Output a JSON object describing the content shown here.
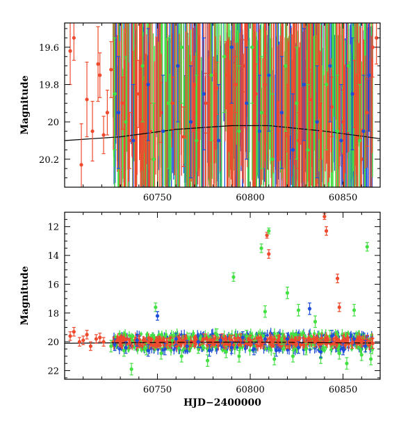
{
  "chart_data": [
    {
      "id": "top",
      "type": "scatter",
      "title": "",
      "xlabel": "",
      "ylabel": "Magnitude",
      "xlim": [
        60700,
        60870
      ],
      "ylim": [
        20.35,
        19.47
      ],
      "y_inverted": true,
      "xticks": [
        60750,
        60800,
        60850
      ],
      "yticks": [
        19.6,
        19.8,
        20,
        20.2
      ],
      "ytick_labels": [
        "19.6",
        "19.8",
        "20",
        "20.2"
      ],
      "grid": false,
      "colors": {
        "blue": "#1f4fd8",
        "green": "#44e044",
        "red": "#f04a2e",
        "model": "#000000"
      },
      "model_curve": [
        [
          60700,
          20.1
        ],
        [
          60730,
          20.08
        ],
        [
          60760,
          20.04
        ],
        [
          60790,
          20.02
        ],
        [
          60810,
          20.02
        ],
        [
          60840,
          20.05
        ],
        [
          60870,
          20.09
        ]
      ],
      "series": [
        {
          "color": "red",
          "points": [
            [
              60703,
              19.62,
              0.18
            ],
            [
              60705,
              19.55,
              0.12
            ],
            [
              60709,
              20.23,
              0.22
            ],
            [
              60712,
              19.88,
              0.2
            ],
            [
              60715,
              20.05,
              0.16
            ],
            [
              60718,
              19.69,
              0.2
            ],
            [
              60719,
              19.75,
              0.12
            ],
            [
              60721,
              20.07,
              0.1
            ],
            [
              60723,
              19.95,
              0.12
            ],
            [
              60725,
              19.72,
              0.15
            ],
            [
              60731,
              19.9,
              0.14
            ],
            [
              60735,
              20.1,
              0.15
            ],
            [
              60740,
              19.85,
              0.18
            ],
            [
              60746,
              20.05,
              0.15
            ],
            [
              60752,
              19.95,
              0.16
            ],
            [
              60758,
              19.9,
              0.14
            ],
            [
              60764,
              20.08,
              0.16
            ],
            [
              60770,
              19.8,
              0.15
            ],
            [
              60776,
              19.9,
              0.16
            ],
            [
              60782,
              19.82,
              0.14
            ],
            [
              60787,
              19.75,
              0.18
            ],
            [
              60792,
              19.8,
              0.15
            ],
            [
              60797,
              19.7,
              0.14
            ],
            [
              60803,
              19.85,
              0.16
            ],
            [
              60808,
              19.8,
              0.17
            ],
            [
              60815,
              20.05,
              0.16
            ],
            [
              60820,
              19.98,
              0.18
            ],
            [
              60826,
              20.1,
              0.15
            ],
            [
              60832,
              19.88,
              0.16
            ],
            [
              60838,
              20.05,
              0.15
            ],
            [
              60844,
              19.92,
              0.16
            ],
            [
              60850,
              20.0,
              0.17
            ],
            [
              60856,
              19.85,
              0.18
            ],
            [
              60860,
              20.2,
              0.16
            ],
            [
              60863,
              19.95,
              0.18
            ],
            [
              60866,
              19.6,
              0.16
            ],
            [
              60868,
              19.55,
              0.14
            ]
          ]
        },
        {
          "color": "green",
          "points": [
            [
              60727,
              19.85,
              0.3
            ],
            [
              60733,
              20.0,
              0.35
            ],
            [
              60742,
              19.7,
              0.3
            ],
            [
              60748,
              20.2,
              0.3
            ],
            [
              60756,
              19.9,
              0.35
            ],
            [
              60763,
              19.6,
              0.3
            ],
            [
              60771,
              20.1,
              0.35
            ],
            [
              60779,
              19.75,
              0.35
            ],
            [
              60786,
              19.65,
              0.3
            ],
            [
              60794,
              20.05,
              0.35
            ],
            [
              60801,
              19.6,
              0.3
            ],
            [
              60806,
              19.95,
              0.3
            ],
            [
              60812,
              20.2,
              0.35
            ],
            [
              60819,
              19.7,
              0.35
            ],
            [
              60825,
              19.9,
              0.3
            ],
            [
              60831,
              20.15,
              0.35
            ],
            [
              60841,
              19.8,
              0.35
            ],
            [
              60847,
              20.05,
              0.3
            ],
            [
              60853,
              19.7,
              0.35
            ],
            [
              60859,
              20.1,
              0.3
            ]
          ]
        },
        {
          "color": "blue",
          "points": [
            [
              60729,
              19.95,
              0.3
            ],
            [
              60737,
              20.1,
              0.3
            ],
            [
              60745,
              19.8,
              0.3
            ],
            [
              60753,
              20.05,
              0.3
            ],
            [
              60761,
              19.7,
              0.3
            ],
            [
              60768,
              20.0,
              0.3
            ],
            [
              60775,
              19.85,
              0.3
            ],
            [
              60783,
              20.1,
              0.3
            ],
            [
              60790,
              19.6,
              0.3
            ],
            [
              60798,
              19.9,
              0.3
            ],
            [
              60805,
              20.05,
              0.3
            ],
            [
              60810,
              19.75,
              0.3
            ],
            [
              60817,
              19.95,
              0.3
            ],
            [
              60823,
              20.15,
              0.3
            ],
            [
              60829,
              19.8,
              0.3
            ],
            [
              60836,
              20.0,
              0.3
            ],
            [
              60843,
              19.7,
              0.3
            ],
            [
              60849,
              20.1,
              0.3
            ],
            [
              60855,
              19.85,
              0.3
            ],
            [
              60861,
              20.05,
              0.3
            ],
            [
              60864,
              19.75,
              0.3
            ]
          ]
        }
      ]
    },
    {
      "id": "bottom",
      "type": "scatter",
      "title": "",
      "xlabel": "HJD−2400000",
      "ylabel": "Magnitude",
      "xlim": [
        60700,
        60870
      ],
      "ylim": [
        22.6,
        11.0
      ],
      "y_inverted": true,
      "xticks": [
        60750,
        60800,
        60850
      ],
      "yticks": [
        12,
        14,
        16,
        18,
        20,
        22
      ],
      "ytick_labels": [
        "12",
        "14",
        "16",
        "18",
        "20",
        "22"
      ],
      "grid": false,
      "model_curve": [
        [
          60700,
          20.1
        ],
        [
          60760,
          20.04
        ],
        [
          60800,
          20.02
        ],
        [
          60870,
          20.09
        ]
      ],
      "series": [
        {
          "color": "red",
          "points": [
            [
              60703,
              19.6,
              0.3
            ],
            [
              60705,
              19.3,
              0.3
            ],
            [
              60708,
              20.0,
              0.3
            ],
            [
              60710,
              19.9,
              0.3
            ],
            [
              60712,
              19.5,
              0.3
            ],
            [
              60714,
              20.3,
              0.3
            ],
            [
              60717,
              19.8,
              0.3
            ],
            [
              60719,
              19.7,
              0.3
            ],
            [
              60721,
              20.0,
              0.3
            ],
            [
              60730,
              20.0,
              0.35
            ],
            [
              60735,
              20.1,
              0.35
            ],
            [
              60740,
              19.9,
              0.35
            ],
            [
              60745,
              20.1,
              0.35
            ],
            [
              60750,
              20.0,
              0.35
            ],
            [
              60755,
              20.1,
              0.35
            ],
            [
              60760,
              20.0,
              0.35
            ],
            [
              60765,
              19.9,
              0.35
            ],
            [
              60770,
              20.0,
              0.35
            ],
            [
              60775,
              19.8,
              0.35
            ],
            [
              60780,
              19.9,
              0.35
            ],
            [
              60785,
              19.8,
              0.35
            ],
            [
              60790,
              19.9,
              0.35
            ],
            [
              60795,
              19.8,
              0.35
            ],
            [
              60800,
              19.9,
              0.35
            ],
            [
              60805,
              20.0,
              0.35
            ],
            [
              60809,
              12.6,
              0.2
            ],
            [
              60810,
              13.9,
              0.3
            ],
            [
              60812,
              20.0,
              0.35
            ],
            [
              60815,
              19.9,
              0.35
            ],
            [
              60820,
              20.1,
              0.35
            ],
            [
              60825,
              20.0,
              0.35
            ],
            [
              60830,
              20.1,
              0.35
            ],
            [
              60835,
              20.0,
              0.35
            ],
            [
              60840,
              11.3,
              0.2
            ],
            [
              60841,
              12.3,
              0.3
            ],
            [
              60845,
              20.1,
              0.35
            ],
            [
              60847,
              15.6,
              0.3
            ],
            [
              60848,
              17.6,
              0.3
            ],
            [
              60850,
              19.9,
              0.35
            ],
            [
              60855,
              20.1,
              0.35
            ],
            [
              60860,
              20.0,
              0.35
            ],
            [
              60863,
              19.9,
              0.35
            ],
            [
              60866,
              20.1,
              0.35
            ]
          ]
        },
        {
          "color": "green",
          "points": [
            [
              60725,
              20.3,
              0.4
            ],
            [
              60732,
              20.6,
              0.4
            ],
            [
              60736,
              21.9,
              0.4
            ],
            [
              60744,
              20.5,
              0.4
            ],
            [
              60749,
              17.6,
              0.3
            ],
            [
              60752,
              20.8,
              0.4
            ],
            [
              60758,
              19.9,
              0.4
            ],
            [
              60763,
              21.0,
              0.4
            ],
            [
              60767,
              19.8,
              0.4
            ],
            [
              60772,
              20.4,
              0.4
            ],
            [
              60777,
              21.3,
              0.4
            ],
            [
              60782,
              19.5,
              0.4
            ],
            [
              60787,
              20.7,
              0.4
            ],
            [
              60791,
              15.5,
              0.3
            ],
            [
              60794,
              21.0,
              0.4
            ],
            [
              60798,
              19.6,
              0.4
            ],
            [
              60802,
              20.3,
              0.4
            ],
            [
              60806,
              13.5,
              0.3
            ],
            [
              60808,
              17.9,
              0.4
            ],
            [
              60810,
              12.3,
              0.2
            ],
            [
              60813,
              21.2,
              0.4
            ],
            [
              60817,
              19.8,
              0.4
            ],
            [
              60820,
              16.6,
              0.4
            ],
            [
              60823,
              21.0,
              0.4
            ],
            [
              60826,
              17.8,
              0.4
            ],
            [
              60830,
              20.5,
              0.4
            ],
            [
              60835,
              18.6,
              0.4
            ],
            [
              60838,
              21.1,
              0.4
            ],
            [
              60843,
              19.6,
              0.4
            ],
            [
              60848,
              20.8,
              0.4
            ],
            [
              60852,
              21.5,
              0.4
            ],
            [
              60856,
              17.8,
              0.4
            ],
            [
              60860,
              20.9,
              0.4
            ],
            [
              60863,
              13.4,
              0.3
            ],
            [
              60865,
              21.2,
              0.4
            ]
          ]
        },
        {
          "color": "blue",
          "points": [
            [
              60727,
              20.2,
              0.4
            ],
            [
              60733,
              20.4,
              0.4
            ],
            [
              60739,
              19.9,
              0.4
            ],
            [
              60745,
              20.6,
              0.4
            ],
            [
              60750,
              18.2,
              0.3
            ],
            [
              60754,
              20.5,
              0.4
            ],
            [
              60760,
              19.8,
              0.4
            ],
            [
              60766,
              20.3,
              0.4
            ],
            [
              60772,
              20.0,
              0.4
            ],
            [
              60778,
              20.6,
              0.4
            ],
            [
              60784,
              19.9,
              0.4
            ],
            [
              60790,
              20.4,
              0.4
            ],
            [
              60796,
              19.7,
              0.4
            ],
            [
              60802,
              20.5,
              0.4
            ],
            [
              60808,
              19.8,
              0.4
            ],
            [
              60814,
              20.6,
              0.4
            ],
            [
              60820,
              19.8,
              0.4
            ],
            [
              60826,
              20.4,
              0.4
            ],
            [
              60832,
              17.7,
              0.4
            ],
            [
              60838,
              20.7,
              0.4
            ],
            [
              60844,
              19.6,
              0.4
            ],
            [
              60850,
              20.5,
              0.4
            ],
            [
              60856,
              19.8,
              0.4
            ],
            [
              60862,
              20.3,
              0.4
            ]
          ]
        }
      ]
    }
  ]
}
